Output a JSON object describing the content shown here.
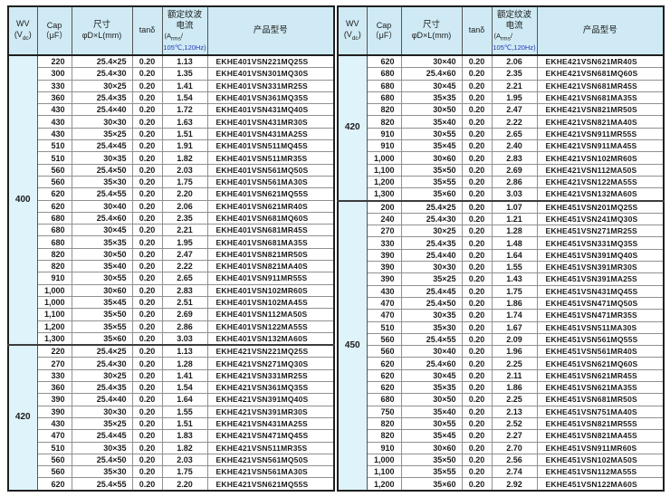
{
  "colors": {
    "header_bg": "#cfeaf4",
    "wv_column_bg": "#dff3fa",
    "outer_border": "#1f1f1f",
    "inner_border": "#909090",
    "text": "#1b1b1b",
    "condition_blue": "#2238b8"
  },
  "header": {
    "wv": {
      "title": "WV",
      "unit_pre": "(V",
      "unit_sub": "dc",
      "unit_post": ")"
    },
    "cap": {
      "title": "Cap",
      "unit": "（μF）"
    },
    "size": {
      "title": "尺寸",
      "unit": "φD×L(mm)"
    },
    "tan": {
      "title": "tanδ"
    },
    "ripple": {
      "title_line1": "额定纹波",
      "title_line2": "电流",
      "unit_pre": "(A",
      "unit_sub": "rms",
      "unit_post": "/",
      "condition": "105℃,120Hz)"
    },
    "model": {
      "title": "产品型号"
    }
  },
  "tables": [
    {
      "sections": [
        {
          "wv": "400",
          "rows": [
            [
              "220",
              "25.4×25",
              "0.20",
              "1.13",
              "EKHE401VSN221MQ25S"
            ],
            [
              "300",
              "25.4×30",
              "0.20",
              "1.35",
              "EKHE401VSN301MQ30S"
            ],
            [
              "330",
              "30×25",
              "0.20",
              "1.41",
              "EKHE401VSN331MR25S"
            ],
            [
              "360",
              "25.4×35",
              "0.20",
              "1.54",
              "EKHE401VSN361MQ35S"
            ],
            [
              "430",
              "25.4×40",
              "0.20",
              "1.72",
              "EKHE401VSN431MQ40S"
            ],
            [
              "430",
              "30×30",
              "0.20",
              "1.63",
              "EKHE401VSN431MR30S"
            ],
            [
              "430",
              "35×25",
              "0.20",
              "1.51",
              "EKHE401VSN431MA25S"
            ],
            [
              "510",
              "25.4×45",
              "0.20",
              "1.91",
              "EKHE401VSN511MQ45S"
            ],
            [
              "510",
              "30×35",
              "0.20",
              "1.82",
              "EKHE401VSN511MR35S"
            ],
            [
              "560",
              "25.4×50",
              "0.20",
              "2.03",
              "EKHE401VSN561MQ50S"
            ],
            [
              "560",
              "35×30",
              "0.20",
              "1.75",
              "EKHE401VSN561MA30S"
            ],
            [
              "620",
              "25.4×55",
              "0.20",
              "2.20",
              "EKHE401VSN621MQ55S"
            ],
            [
              "620",
              "30×40",
              "0.20",
              "2.06",
              "EKHE401VSN621MR40S"
            ],
            [
              "680",
              "25.4×60",
              "0.20",
              "2.35",
              "EKHE401VSN681MQ60S"
            ],
            [
              "680",
              "30×45",
              "0.20",
              "2.21",
              "EKHE401VSN681MR45S"
            ],
            [
              "680",
              "35×35",
              "0.20",
              "1.95",
              "EKHE401VSN681MA35S"
            ],
            [
              "820",
              "30×50",
              "0.20",
              "2.47",
              "EKHE401VSN821MR50S"
            ],
            [
              "820",
              "35×40",
              "0.20",
              "2.22",
              "EKHE401VSN821MA40S"
            ],
            [
              "910",
              "30×55",
              "0.20",
              "2.65",
              "EKHE401VSN911MR55S"
            ],
            [
              "1,000",
              "30×60",
              "0.20",
              "2.83",
              "EKHE401VSN102MR60S"
            ],
            [
              "1,000",
              "35×45",
              "0.20",
              "2.51",
              "EKHE401VSN102MA45S"
            ],
            [
              "1,100",
              "35×50",
              "0.20",
              "2.69",
              "EKHE401VSN112MA50S"
            ],
            [
              "1,200",
              "35×55",
              "0.20",
              "2.86",
              "EKHE401VSN122MA55S"
            ],
            [
              "1,300",
              "35×60",
              "0.20",
              "3.03",
              "EKHE401VSN132MA60S"
            ]
          ]
        },
        {
          "wv": "420",
          "rows": [
            [
              "220",
              "25.4×25",
              "0.20",
              "1.13",
              "EKHE421VSN221MQ25S"
            ],
            [
              "270",
              "25.4×30",
              "0.20",
              "1.28",
              "EKHE421VSN271MQ30S"
            ],
            [
              "330",
              "30×25",
              "0.20",
              "1.41",
              "EKHE421VSN331MR25S"
            ],
            [
              "360",
              "25.4×35",
              "0.20",
              "1.54",
              "EKHE421VSN361MQ35S"
            ],
            [
              "390",
              "25.4×40",
              "0.20",
              "1.64",
              "EKHE421VSN391MQ40S"
            ],
            [
              "390",
              "30×30",
              "0.20",
              "1.55",
              "EKHE421VSN391MR30S"
            ],
            [
              "430",
              "35×25",
              "0.20",
              "1.51",
              "EKHE421VSN431MA25S"
            ],
            [
              "470",
              "25.4×45",
              "0.20",
              "1.83",
              "EKHE421VSN471MQ45S"
            ],
            [
              "510",
              "30×35",
              "0.20",
              "1.82",
              "EKHE421VSN511MR35S"
            ],
            [
              "560",
              "25.4×50",
              "0.20",
              "2.03",
              "EKHE421VSN561MQ50S"
            ],
            [
              "560",
              "35×30",
              "0.20",
              "1.75",
              "EKHE421VSN561MA30S"
            ],
            [
              "620",
              "25.4×55",
              "0.20",
              "2.20",
              "EKHE421VSN621MQ55S"
            ]
          ]
        }
      ]
    },
    {
      "sections": [
        {
          "wv": "420",
          "rows": [
            [
              "620",
              "30×40",
              "0.20",
              "2.06",
              "EKHE421VSN621MR40S"
            ],
            [
              "680",
              "25.4×60",
              "0.20",
              "2.35",
              "EKHE421VSN681MQ60S"
            ],
            [
              "680",
              "30×45",
              "0.20",
              "2.21",
              "EKHE421VSN681MR45S"
            ],
            [
              "680",
              "35×35",
              "0.20",
              "1.95",
              "EKHE421VSN681MA35S"
            ],
            [
              "820",
              "30×50",
              "0.20",
              "2.47",
              "EKHE421VSN821MR50S"
            ],
            [
              "820",
              "35×40",
              "0.20",
              "2.22",
              "EKHE421VSN821MA40S"
            ],
            [
              "910",
              "30×55",
              "0.20",
              "2.65",
              "EKHE421VSN911MR55S"
            ],
            [
              "910",
              "35×45",
              "0.20",
              "2.40",
              "EKHE421VSN911MA45S"
            ],
            [
              "1,000",
              "30×60",
              "0.20",
              "2.83",
              "EKHE421VSN102MR60S"
            ],
            [
              "1,100",
              "35×50",
              "0.20",
              "2.69",
              "EKHE421VSN112MA50S"
            ],
            [
              "1,200",
              "35×55",
              "0.20",
              "2.86",
              "EKHE421VSN122MA55S"
            ],
            [
              "1,300",
              "35×60",
              "0.20",
              "3.03",
              "EKHE421VSN132MA60S"
            ]
          ]
        },
        {
          "wv": "450",
          "rows": [
            [
              "200",
              "25.4×25",
              "0.20",
              "1.07",
              "EKHE451VSN201MQ25S"
            ],
            [
              "240",
              "25.4×30",
              "0.20",
              "1.21",
              "EKHE451VSN241MQ30S"
            ],
            [
              "270",
              "30×25",
              "0.20",
              "1.28",
              "EKHE451VSN271MR25S"
            ],
            [
              "330",
              "25.4×35",
              "0.20",
              "1.48",
              "EKHE451VSN331MQ35S"
            ],
            [
              "390",
              "25.4×40",
              "0.20",
              "1.64",
              "EKHE451VSN391MQ40S"
            ],
            [
              "390",
              "30×30",
              "0.20",
              "1.55",
              "EKHE451VSN391MR30S"
            ],
            [
              "390",
              "35×25",
              "0.20",
              "1.43",
              "EKHE451VSN391MA25S"
            ],
            [
              "430",
              "25.4×45",
              "0.20",
              "1.75",
              "EKHE451VSN431MQ45S"
            ],
            [
              "470",
              "25.4×50",
              "0.20",
              "1.86",
              "EKHE451VSN471MQ50S"
            ],
            [
              "470",
              "30×35",
              "0.20",
              "1.74",
              "EKHE451VSN471MR35S"
            ],
            [
              "510",
              "35×30",
              "0.20",
              "1.67",
              "EKHE451VSN511MA30S"
            ],
            [
              "560",
              "25.4×55",
              "0.20",
              "2.09",
              "EKHE451VSN561MQ55S"
            ],
            [
              "560",
              "30×40",
              "0.20",
              "1.96",
              "EKHE451VSN561MR40S"
            ],
            [
              "620",
              "25.4×60",
              "0.20",
              "2.25",
              "EKHE451VSN621MQ60S"
            ],
            [
              "620",
              "30×45",
              "0.20",
              "2.11",
              "EKHE451VSN621MR45S"
            ],
            [
              "620",
              "35×35",
              "0.20",
              "1.86",
              "EKHE451VSN621MA35S"
            ],
            [
              "680",
              "30×50",
              "0.20",
              "2.25",
              "EKHE451VSN681MR50S"
            ],
            [
              "750",
              "35×40",
              "0.20",
              "2.13",
              "EKHE451VSN751MA40S"
            ],
            [
              "820",
              "30×55",
              "0.20",
              "2.52",
              "EKHE451VSN821MR55S"
            ],
            [
              "820",
              "35×45",
              "0.20",
              "2.27",
              "EKHE451VSN821MA45S"
            ],
            [
              "910",
              "30×60",
              "0.20",
              "2.70",
              "EKHE451VSN911MR60S"
            ],
            [
              "1,000",
              "35×50",
              "0.20",
              "2.56",
              "EKHE451VSN102MA50S"
            ],
            [
              "1,100",
              "35×55",
              "0.20",
              "2.74",
              "EKHE451VSN112MA55S"
            ],
            [
              "1,200",
              "35×60",
              "0.20",
              "2.92",
              "EKHE451VSN122MA60S"
            ]
          ]
        }
      ]
    }
  ]
}
